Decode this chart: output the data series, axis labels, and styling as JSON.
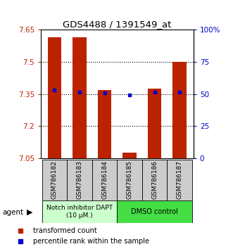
{
  "title": "GDS4488 / 1391549_at",
  "samples": [
    "GSM786182",
    "GSM786183",
    "GSM786184",
    "GSM786185",
    "GSM786186",
    "GSM786187"
  ],
  "bar_values": [
    7.615,
    7.615,
    7.37,
    7.075,
    7.375,
    7.5
  ],
  "blue_dot_values": [
    7.37,
    7.36,
    7.355,
    7.345,
    7.36,
    7.36
  ],
  "ymin": 7.05,
  "ymax": 7.65,
  "yticks_left": [
    7.05,
    7.2,
    7.35,
    7.5,
    7.65
  ],
  "yticks_right_labels": [
    "0",
    "25",
    "50",
    "75",
    "100%"
  ],
  "yticks_right_vals": [
    7.05,
    7.2,
    7.35,
    7.5,
    7.65
  ],
  "bar_color": "#bb2200",
  "dot_color": "#0000cc",
  "bar_bottom": 7.05,
  "group1_label": "Notch inhibitor DAPT\n(10 μM.)",
  "group2_label": "DMSO control",
  "group_bg1": "#ccffcc",
  "group_bg2": "#44dd44",
  "agent_label": "agent",
  "legend1": "transformed count",
  "legend2": "percentile rank within the sample",
  "tick_bg": "#cccccc",
  "gridline_vals": [
    7.2,
    7.35,
    7.5
  ]
}
